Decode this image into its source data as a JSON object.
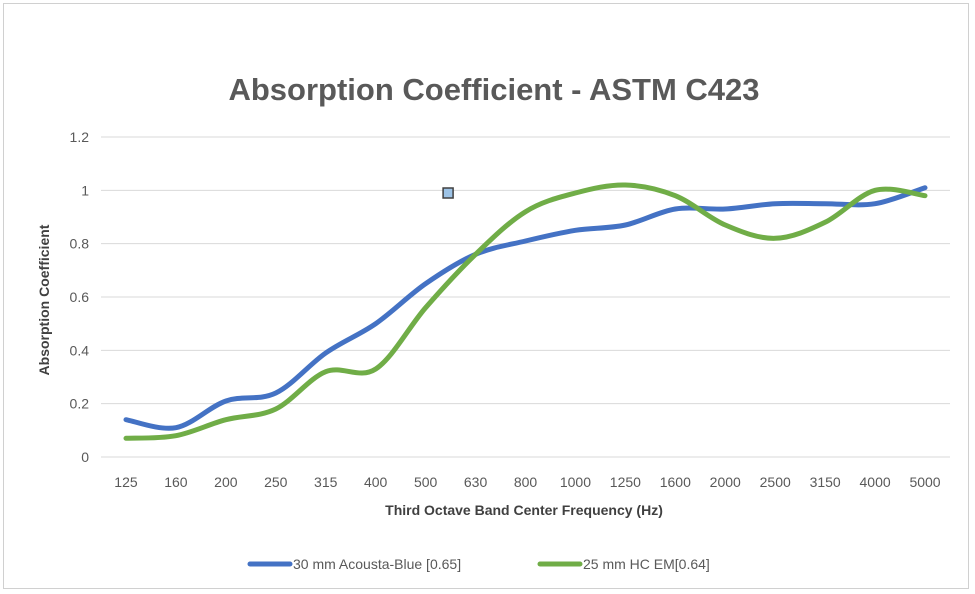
{
  "chart_data": {
    "type": "line",
    "title": "Absorption Coefficient - ASTM C423",
    "xlabel": "Third Octave Band Center Frequency (Hz)",
    "ylabel": "Absorption Coefficient",
    "ylim": [
      0,
      1.2
    ],
    "yticks": [
      "0",
      "0.2",
      "0.4",
      "0.6",
      "0.8",
      "1",
      "1.2"
    ],
    "grid": true,
    "legend": "bottom",
    "categories": [
      "125",
      "160",
      "200",
      "250",
      "315",
      "400",
      "500",
      "630",
      "800",
      "1000",
      "1250",
      "1600",
      "2000",
      "2500",
      "3150",
      "4000",
      "5000"
    ],
    "series": [
      {
        "name": "30 mm Acousta-Blue [0.65]",
        "color": "#4472c4",
        "values": [
          0.14,
          0.11,
          0.21,
          0.24,
          0.39,
          0.5,
          0.65,
          0.76,
          0.81,
          0.85,
          0.87,
          0.93,
          0.93,
          0.95,
          0.95,
          0.95,
          1.01
        ]
      },
      {
        "name": "25 mm HC EM[0.64]",
        "color": "#70ad47",
        "values": [
          0.07,
          0.08,
          0.14,
          0.18,
          0.32,
          0.33,
          0.56,
          0.76,
          0.92,
          0.99,
          1.02,
          0.98,
          0.87,
          0.82,
          0.88,
          1.0,
          0.98
        ]
      }
    ],
    "annotation": {
      "type": "marker",
      "shape": "square",
      "color": "#9dc3e6",
      "category": "630",
      "offset": -0.55,
      "value": 0.99
    }
  }
}
